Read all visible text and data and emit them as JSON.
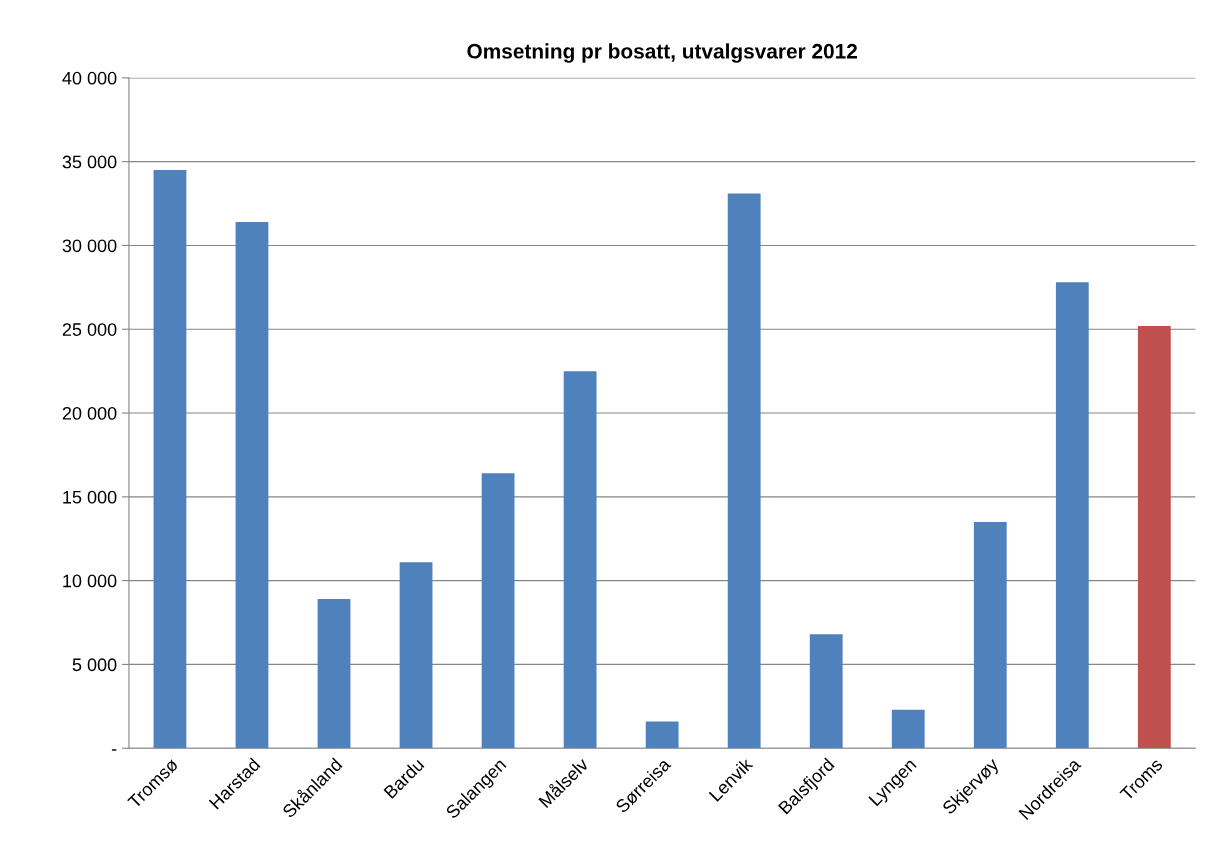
{
  "chart_data": {
    "type": "bar",
    "title": "Omsetning pr bosatt, utvalgsvarer 2012",
    "categories": [
      "Tromsø",
      "Harstad",
      "Skånland",
      "Bardu",
      "Salangen",
      "Målselv",
      "Sørreisa",
      "Lenvik",
      "Balsfjord",
      "Lyngen",
      "Skjervøy",
      "Nordreisa",
      "Troms"
    ],
    "values": [
      34500,
      31400,
      8900,
      11100,
      16400,
      22500,
      1600,
      33100,
      6800,
      2300,
      13500,
      27800,
      25200
    ],
    "colors": [
      "#4f81bd",
      "#4f81bd",
      "#4f81bd",
      "#4f81bd",
      "#4f81bd",
      "#4f81bd",
      "#4f81bd",
      "#4f81bd",
      "#4f81bd",
      "#4f81bd",
      "#4f81bd",
      "#4f81bd",
      "#c0504d"
    ],
    "ylim": [
      0,
      40000
    ],
    "yticks": [
      {
        "value": 0,
        "label": "-"
      },
      {
        "value": 5000,
        "label": "5 000"
      },
      {
        "value": 10000,
        "label": "10 000"
      },
      {
        "value": 15000,
        "label": "15 000"
      },
      {
        "value": 20000,
        "label": "20 000"
      },
      {
        "value": 25000,
        "label": "25 000"
      },
      {
        "value": 30000,
        "label": "30 000"
      },
      {
        "value": 35000,
        "label": "35 000"
      },
      {
        "value": 40000,
        "label": "40 000"
      }
    ],
    "grid": "y",
    "legend": false
  }
}
